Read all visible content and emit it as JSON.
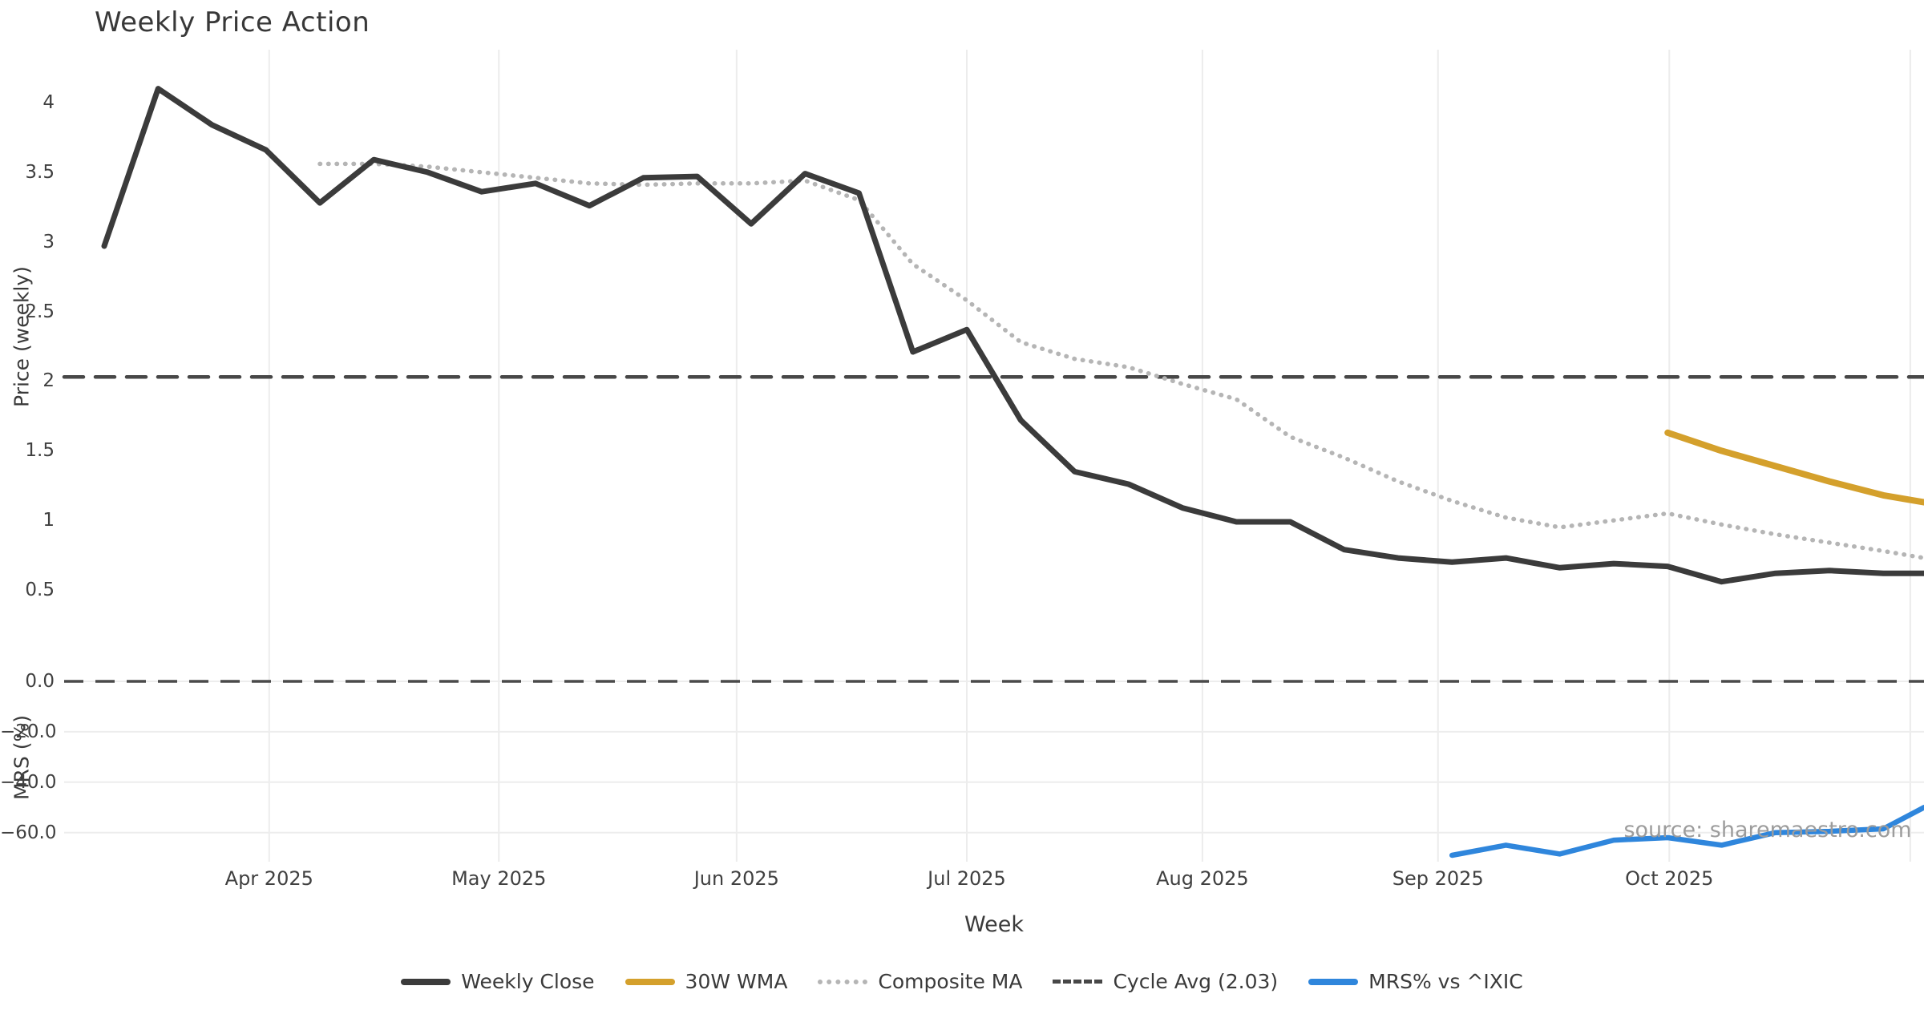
{
  "page": {
    "background": "#ffffff",
    "source_note": "source: sharemaestro.com"
  },
  "chart_data": {
    "type": "line",
    "title": "Weekly Price Action",
    "xlabel": "Week",
    "grid": true,
    "legend_position": "bottom-center",
    "x_unit": "week-index (0 = first plotted week, ~7 days apart)",
    "x_ticks": [
      {
        "label": "Apr 2025",
        "xi": 3.06
      },
      {
        "label": "May 2025",
        "xi": 7.32
      },
      {
        "label": "Jun 2025",
        "xi": 11.73
      },
      {
        "label": "Jul 2025",
        "xi": 16.0
      },
      {
        "label": "Aug 2025",
        "xi": 20.37
      },
      {
        "label": "Sep 2025",
        "xi": 24.74
      },
      {
        "label": "Oct 2025",
        "xi": 29.03
      },
      {
        "label": "",
        "xi": 33.5
      }
    ],
    "panels": [
      {
        "id": "price",
        "ylabel": "Price (weekly)",
        "ylim": [
          0.25,
          4.4
        ],
        "ticks": [
          {
            "v": 4,
            "label": "4"
          },
          {
            "v": 3.5,
            "label": "3.5"
          },
          {
            "v": 3,
            "label": "3"
          },
          {
            "v": 2.5,
            "label": "2.5"
          },
          {
            "v": 2,
            "label": "2"
          },
          {
            "v": 1.5,
            "label": "1.5"
          },
          {
            "v": 1,
            "label": "1"
          },
          {
            "v": 0.5,
            "label": "0.5"
          }
        ]
      },
      {
        "id": "mrs",
        "ylabel": "MRS (%)",
        "ylim": [
          -71,
          3
        ],
        "ticks": [
          {
            "v": 0,
            "label": "0.0"
          },
          {
            "v": -20,
            "label": "−20.0"
          },
          {
            "v": -40,
            "label": "−40.0"
          },
          {
            "v": -60,
            "label": "−60.0"
          }
        ],
        "zero_line": {
          "value": 0.0,
          "color": "#4a4a4a",
          "style": "dashed"
        }
      }
    ],
    "series": [
      {
        "id": "weekly_close",
        "label": "Weekly Close",
        "panel": "price",
        "color": "#3b3b3b",
        "style": "solid",
        "width": 7,
        "x": [
          0,
          1,
          2,
          3,
          4,
          5,
          6,
          7,
          8,
          9,
          10,
          11,
          12,
          13,
          14,
          15,
          16,
          17,
          18,
          19,
          20,
          21,
          22,
          23,
          24,
          25,
          26,
          27,
          28,
          29,
          30,
          31,
          32,
          33,
          33.75
        ],
        "y": [
          2.97,
          4.1,
          3.84,
          3.66,
          3.28,
          3.59,
          3.5,
          3.36,
          3.42,
          3.26,
          3.46,
          3.47,
          3.13,
          3.49,
          3.35,
          2.21,
          2.37,
          1.72,
          1.35,
          1.26,
          1.09,
          0.99,
          0.99,
          0.79,
          0.73,
          0.7,
          0.73,
          0.66,
          0.69,
          0.67,
          0.56,
          0.62,
          0.64,
          0.62,
          0.62
        ]
      },
      {
        "id": "wma_30w",
        "label": "30W WMA",
        "panel": "price",
        "color": "#d4a02c",
        "style": "solid",
        "width": 8,
        "x": [
          29,
          30,
          31,
          32,
          33,
          33.75
        ],
        "y": [
          1.63,
          1.5,
          1.39,
          1.28,
          1.18,
          1.13
        ]
      },
      {
        "id": "composite_ma",
        "label": "Composite MA",
        "panel": "price",
        "color": "#b5b5b5",
        "style": "dotted",
        "width": 5.5,
        "x": [
          4,
          5,
          6,
          7,
          8,
          9,
          10,
          11,
          12,
          13,
          14,
          15,
          16,
          17,
          18,
          19,
          20,
          21,
          22,
          23,
          24,
          25,
          26,
          27,
          28,
          29,
          30,
          31,
          32,
          33,
          33.75
        ],
        "y": [
          3.56,
          3.56,
          3.54,
          3.5,
          3.46,
          3.42,
          3.41,
          3.42,
          3.42,
          3.44,
          3.3,
          2.84,
          2.58,
          2.28,
          2.16,
          2.1,
          1.98,
          1.87,
          1.6,
          1.45,
          1.28,
          1.14,
          1.02,
          0.95,
          1.0,
          1.05,
          0.97,
          0.9,
          0.84,
          0.78,
          0.73
        ]
      },
      {
        "id": "cycle_avg",
        "label": "Cycle Avg (2.03)",
        "panel": "price",
        "color": "#474747",
        "style": "dashed",
        "width": 4.5,
        "constant": 2.03
      },
      {
        "id": "mrs_vs_ixic",
        "label": "MRS% vs ^IXIC",
        "panel": "mrs",
        "color": "#2f86dc",
        "style": "solid",
        "width": 6.5,
        "x": [
          25,
          26,
          27,
          28,
          29,
          30,
          31,
          32,
          33,
          33.75
        ],
        "y": [
          -69,
          -65,
          -68.5,
          -63,
          -62,
          -65,
          -60,
          -59.5,
          -58.5,
          -50
        ]
      }
    ]
  }
}
